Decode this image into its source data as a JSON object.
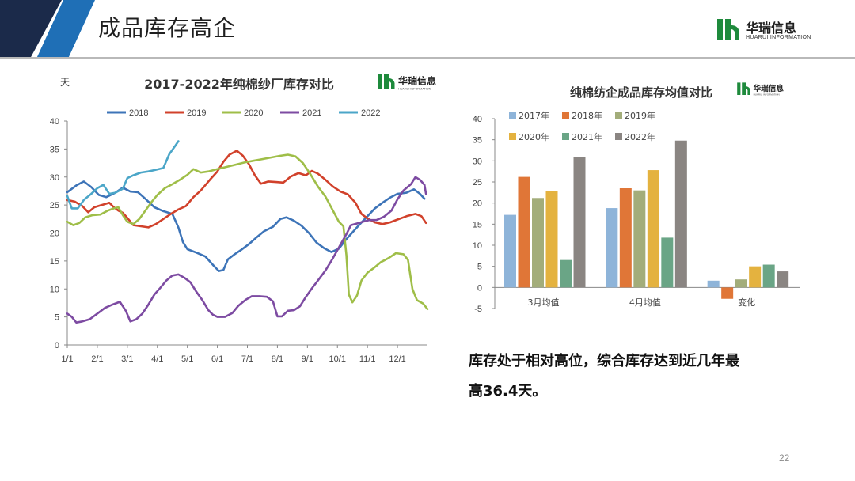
{
  "header": {
    "title": "成品库存高企"
  },
  "brand": {
    "name": "华瑞信息",
    "sub": "HUARUI INFORMATION",
    "color": "#1e8a3c"
  },
  "summary": {
    "line1": "库存处于相对高位，综合库存达到近几年最",
    "line2": "高36.4天。"
  },
  "page_number": "22",
  "chart_data": [
    {
      "type": "line",
      "title": "2017-2022年纯棉纱厂库存对比",
      "ylabel": "天",
      "ylim": [
        0,
        40
      ],
      "yticks": [
        0,
        5,
        10,
        15,
        20,
        25,
        30,
        35,
        40
      ],
      "xlim": [
        0,
        12
      ],
      "xticks": [
        {
          "x": 0,
          "label": "1/1"
        },
        {
          "x": 1,
          "label": "2/1"
        },
        {
          "x": 2,
          "label": "3/1"
        },
        {
          "x": 3,
          "label": "4/1"
        },
        {
          "x": 4,
          "label": "5/1"
        },
        {
          "x": 5,
          "label": "6/1"
        },
        {
          "x": 6,
          "label": "7/1"
        },
        {
          "x": 7,
          "label": "8/1"
        },
        {
          "x": 8,
          "label": "9/1"
        },
        {
          "x": 9,
          "label": "10/1"
        },
        {
          "x": 10,
          "label": "11/1"
        },
        {
          "x": 11,
          "label": "12/1"
        }
      ],
      "legend_position": "top",
      "series": [
        {
          "name": "2018",
          "color": "#3d74b8",
          "points": [
            [
              0,
              27.3
            ],
            [
              0.3,
              28.5
            ],
            [
              0.55,
              29.2
            ],
            [
              0.8,
              28.2
            ],
            [
              1.05,
              26.8
            ],
            [
              1.3,
              26.4
            ],
            [
              1.6,
              27.2
            ],
            [
              1.85,
              28.1
            ],
            [
              2.1,
              27.4
            ],
            [
              2.35,
              27.3
            ],
            [
              2.6,
              26.1
            ],
            [
              2.9,
              24.6
            ],
            [
              3.2,
              23.9
            ],
            [
              3.5,
              23.4
            ],
            [
              3.7,
              21.0
            ],
            [
              3.85,
              18.4
            ],
            [
              4.0,
              17.1
            ],
            [
              4.3,
              16.5
            ],
            [
              4.6,
              15.8
            ],
            [
              4.85,
              14.3
            ],
            [
              5.05,
              13.2
            ],
            [
              5.2,
              13.4
            ],
            [
              5.35,
              15.3
            ],
            [
              5.55,
              16.1
            ],
            [
              5.8,
              17.0
            ],
            [
              6.05,
              18.0
            ],
            [
              6.3,
              19.2
            ],
            [
              6.55,
              20.3
            ],
            [
              6.85,
              21.1
            ],
            [
              7.1,
              22.5
            ],
            [
              7.3,
              22.8
            ],
            [
              7.55,
              22.2
            ],
            [
              7.8,
              21.3
            ],
            [
              8.05,
              20.0
            ],
            [
              8.3,
              18.3
            ],
            [
              8.55,
              17.3
            ],
            [
              8.8,
              16.6
            ],
            [
              9.05,
              17.2
            ],
            [
              9.25,
              18.6
            ],
            [
              9.5,
              20.1
            ],
            [
              9.75,
              21.6
            ],
            [
              10.0,
              23.0
            ],
            [
              10.25,
              24.4
            ],
            [
              10.5,
              25.4
            ],
            [
              10.75,
              26.3
            ],
            [
              11.0,
              27.0
            ],
            [
              11.3,
              27.2
            ],
            [
              11.55,
              27.8
            ],
            [
              11.75,
              27.0
            ],
            [
              11.9,
              26.1
            ]
          ]
        },
        {
          "name": "2019",
          "color": "#d1412b",
          "points": [
            [
              0,
              25.9
            ],
            [
              0.25,
              25.6
            ],
            [
              0.5,
              24.8
            ],
            [
              0.7,
              23.7
            ],
            [
              0.9,
              24.6
            ],
            [
              1.15,
              25.0
            ],
            [
              1.4,
              25.4
            ],
            [
              1.55,
              24.6
            ],
            [
              1.7,
              24.0
            ],
            [
              1.85,
              23.6
            ],
            [
              2.0,
              22.7
            ],
            [
              2.2,
              21.4
            ],
            [
              2.45,
              21.2
            ],
            [
              2.7,
              21.0
            ],
            [
              2.95,
              21.6
            ],
            [
              3.2,
              22.5
            ],
            [
              3.45,
              23.4
            ],
            [
              3.7,
              24.2
            ],
            [
              3.95,
              24.8
            ],
            [
              4.2,
              26.4
            ],
            [
              4.45,
              27.6
            ],
            [
              4.75,
              29.5
            ],
            [
              5.0,
              31.0
            ],
            [
              5.2,
              32.7
            ],
            [
              5.4,
              34.0
            ],
            [
              5.65,
              34.7
            ],
            [
              5.85,
              33.8
            ],
            [
              6.05,
              32.3
            ],
            [
              6.25,
              30.3
            ],
            [
              6.45,
              28.8
            ],
            [
              6.7,
              29.2
            ],
            [
              6.95,
              29.1
            ],
            [
              7.2,
              29.0
            ],
            [
              7.45,
              30.1
            ],
            [
              7.7,
              30.7
            ],
            [
              7.95,
              30.3
            ],
            [
              8.15,
              31.1
            ],
            [
              8.35,
              30.6
            ],
            [
              8.6,
              29.5
            ],
            [
              8.85,
              28.3
            ],
            [
              9.1,
              27.4
            ],
            [
              9.35,
              26.9
            ],
            [
              9.6,
              25.4
            ],
            [
              9.8,
              23.4
            ],
            [
              10.0,
              22.6
            ],
            [
              10.25,
              21.9
            ],
            [
              10.5,
              21.6
            ],
            [
              10.75,
              21.9
            ],
            [
              11.0,
              22.4
            ],
            [
              11.3,
              23.0
            ],
            [
              11.6,
              23.4
            ],
            [
              11.8,
              23.0
            ],
            [
              11.95,
              21.8
            ]
          ]
        },
        {
          "name": "2020",
          "color": "#9fbe48",
          "points": [
            [
              0,
              22.0
            ],
            [
              0.2,
              21.4
            ],
            [
              0.4,
              21.8
            ],
            [
              0.6,
              22.8
            ],
            [
              0.85,
              23.2
            ],
            [
              1.1,
              23.3
            ],
            [
              1.35,
              24.0
            ],
            [
              1.55,
              24.4
            ],
            [
              1.7,
              24.6
            ],
            [
              1.85,
              23.2
            ],
            [
              2.0,
              22.0
            ],
            [
              2.2,
              21.6
            ],
            [
              2.4,
              22.5
            ],
            [
              2.6,
              24.0
            ],
            [
              2.8,
              25.5
            ],
            [
              3.0,
              26.8
            ],
            [
              3.25,
              28.0
            ],
            [
              3.5,
              28.7
            ],
            [
              3.75,
              29.5
            ],
            [
              4.0,
              30.4
            ],
            [
              4.2,
              31.4
            ],
            [
              4.45,
              30.8
            ],
            [
              4.7,
              31.0
            ],
            [
              5.0,
              31.4
            ],
            [
              5.3,
              31.8
            ],
            [
              5.6,
              32.2
            ],
            [
              5.9,
              32.6
            ],
            [
              6.2,
              32.9
            ],
            [
              6.5,
              33.2
            ],
            [
              6.8,
              33.5
            ],
            [
              7.1,
              33.8
            ],
            [
              7.35,
              34.0
            ],
            [
              7.6,
              33.7
            ],
            [
              7.85,
              32.5
            ],
            [
              8.1,
              30.5
            ],
            [
              8.35,
              28.3
            ],
            [
              8.6,
              26.5
            ],
            [
              8.85,
              24.0
            ],
            [
              9.05,
              22.0
            ],
            [
              9.2,
              21.2
            ],
            [
              9.3,
              16.0
            ],
            [
              9.38,
              9.0
            ],
            [
              9.5,
              7.6
            ],
            [
              9.65,
              8.8
            ],
            [
              9.8,
              11.5
            ],
            [
              10.0,
              12.9
            ],
            [
              10.2,
              13.7
            ],
            [
              10.45,
              14.8
            ],
            [
              10.7,
              15.5
            ],
            [
              10.95,
              16.4
            ],
            [
              11.2,
              16.2
            ],
            [
              11.35,
              15.2
            ],
            [
              11.5,
              10.0
            ],
            [
              11.65,
              8.0
            ],
            [
              11.85,
              7.4
            ],
            [
              12.0,
              6.4
            ]
          ]
        },
        {
          "name": "2021",
          "color": "#7d4ba2",
          "points": [
            [
              0,
              5.6
            ],
            [
              0.15,
              5.0
            ],
            [
              0.3,
              4.0
            ],
            [
              0.5,
              4.2
            ],
            [
              0.75,
              4.6
            ],
            [
              1.0,
              5.6
            ],
            [
              1.25,
              6.6
            ],
            [
              1.5,
              7.2
            ],
            [
              1.75,
              7.7
            ],
            [
              1.95,
              6.1
            ],
            [
              2.1,
              4.2
            ],
            [
              2.3,
              4.6
            ],
            [
              2.5,
              5.6
            ],
            [
              2.7,
              7.2
            ],
            [
              2.9,
              9.0
            ],
            [
              3.1,
              10.2
            ],
            [
              3.3,
              11.5
            ],
            [
              3.5,
              12.4
            ],
            [
              3.7,
              12.6
            ],
            [
              3.9,
              12.0
            ],
            [
              4.1,
              11.2
            ],
            [
              4.3,
              9.5
            ],
            [
              4.5,
              8.0
            ],
            [
              4.7,
              6.2
            ],
            [
              4.85,
              5.4
            ],
            [
              5.0,
              5.0
            ],
            [
              5.25,
              5.0
            ],
            [
              5.5,
              5.7
            ],
            [
              5.7,
              7.0
            ],
            [
              5.95,
              8.1
            ],
            [
              6.15,
              8.7
            ],
            [
              6.4,
              8.7
            ],
            [
              6.65,
              8.6
            ],
            [
              6.85,
              7.8
            ],
            [
              7.0,
              5.1
            ],
            [
              7.15,
              5.1
            ],
            [
              7.35,
              6.1
            ],
            [
              7.55,
              6.2
            ],
            [
              7.75,
              6.9
            ],
            [
              7.95,
              8.6
            ],
            [
              8.15,
              10.1
            ],
            [
              8.35,
              11.5
            ],
            [
              8.6,
              13.3
            ],
            [
              8.85,
              15.5
            ],
            [
              9.1,
              17.9
            ],
            [
              9.3,
              19.8
            ],
            [
              9.45,
              21.4
            ],
            [
              9.65,
              21.7
            ],
            [
              9.85,
              22.0
            ],
            [
              10.05,
              22.3
            ],
            [
              10.3,
              22.3
            ],
            [
              10.55,
              22.9
            ],
            [
              10.8,
              24.0
            ],
            [
              11.0,
              26.0
            ],
            [
              11.2,
              27.6
            ],
            [
              11.45,
              28.7
            ],
            [
              11.6,
              30.0
            ],
            [
              11.75,
              29.5
            ],
            [
              11.9,
              28.6
            ],
            [
              11.95,
              27.0
            ]
          ]
        },
        {
          "name": "2022",
          "color": "#4ba6c8",
          "points": [
            [
              0,
              26.6
            ],
            [
              0.15,
              24.4
            ],
            [
              0.35,
              24.4
            ],
            [
              0.55,
              25.9
            ],
            [
              0.8,
              27.0
            ],
            [
              1.0,
              28.0
            ],
            [
              1.2,
              28.6
            ],
            [
              1.4,
              27.0
            ],
            [
              1.6,
              27.2
            ],
            [
              1.85,
              27.9
            ],
            [
              2.0,
              29.8
            ],
            [
              2.2,
              30.3
            ],
            [
              2.45,
              30.8
            ],
            [
              2.7,
              31.0
            ],
            [
              2.95,
              31.3
            ],
            [
              3.2,
              31.6
            ],
            [
              3.4,
              34.1
            ],
            [
              3.6,
              35.6
            ],
            [
              3.7,
              36.4
            ]
          ]
        }
      ]
    },
    {
      "type": "bar",
      "title": "纯棉纺企成品库存均值对比",
      "ylim": [
        -5,
        40
      ],
      "yticks": [
        -5,
        0,
        5,
        10,
        15,
        20,
        25,
        30,
        35,
        40
      ],
      "categories": [
        "3月均值",
        "4月均值",
        "变化"
      ],
      "legend_position": "top",
      "series": [
        {
          "name": "2017年",
          "color": "#8eb4d9",
          "values": [
            17.2,
            18.8,
            1.6
          ]
        },
        {
          "name": "2018年",
          "color": "#e07637",
          "values": [
            26.2,
            23.5,
            -2.7
          ]
        },
        {
          "name": "2019年",
          "color": "#a3ad7a",
          "values": [
            21.2,
            23.0,
            1.9
          ]
        },
        {
          "name": "2020年",
          "color": "#e4b23f",
          "values": [
            22.8,
            27.8,
            5.0
          ]
        },
        {
          "name": "2021年",
          "color": "#6aa586",
          "values": [
            6.5,
            11.8,
            5.4
          ]
        },
        {
          "name": "2022年",
          "color": "#8a8582",
          "values": [
            31.0,
            34.8,
            3.8
          ]
        }
      ]
    }
  ]
}
